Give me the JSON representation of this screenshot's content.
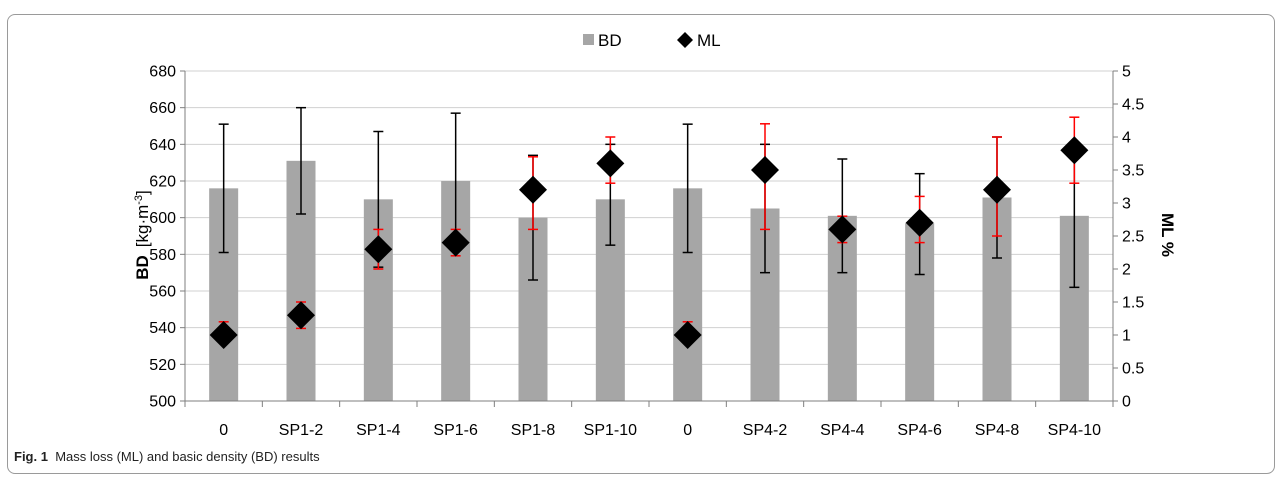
{
  "caption": {
    "label": "Fig. 1",
    "text": "Mass loss (ML) and basic density (BD) results"
  },
  "chart_data": {
    "type": "bar",
    "categories": [
      "0",
      "SP1-2",
      "SP1-4",
      "SP1-6",
      "SP1-8",
      "SP1-10",
      "0",
      "SP4-2",
      "SP4-4",
      "SP4-6",
      "SP4-8",
      "SP4-10"
    ],
    "legend": {
      "position": "top",
      "entries": [
        "BD",
        "ML"
      ]
    },
    "grid": true,
    "series": [
      {
        "name": "BD",
        "kind": "bar",
        "axis": "left",
        "color": "#a6a6a6",
        "values": [
          616,
          631,
          610,
          620,
          600,
          610,
          616,
          605,
          601,
          597,
          611,
          601
        ],
        "error_low": [
          581,
          602,
          573,
          583,
          566,
          585,
          581,
          570,
          570,
          569,
          578,
          562
        ],
        "error_high": [
          651,
          660,
          647,
          657,
          634,
          640,
          651,
          640,
          632,
          624,
          644,
          640
        ],
        "error_color": "#000000"
      },
      {
        "name": "ML",
        "kind": "scatter",
        "marker": "diamond",
        "axis": "right",
        "color": "#000000",
        "values": [
          1.0,
          1.3,
          2.3,
          2.4,
          3.2,
          3.6,
          1.0,
          3.5,
          2.6,
          2.7,
          3.2,
          3.8
        ],
        "error_low": [
          0.9,
          1.1,
          2.0,
          2.2,
          2.6,
          3.3,
          0.9,
          2.6,
          2.4,
          2.4,
          2.5,
          3.3
        ],
        "error_high": [
          1.2,
          1.5,
          2.6,
          2.6,
          3.7,
          4.0,
          1.2,
          4.2,
          2.8,
          3.1,
          4.0,
          4.3
        ],
        "error_color": "#ff0000"
      }
    ],
    "y_left": {
      "label_main": "BD",
      "label_unit": "[kg·m",
      "label_sup": "-3",
      "label_close": "]",
      "lim": [
        500,
        680
      ],
      "ticks": [
        500,
        520,
        540,
        560,
        580,
        600,
        620,
        640,
        660,
        680
      ],
      "tick_labels": [
        "500",
        "520",
        "540",
        "560",
        "580",
        "600",
        "620",
        "640",
        "660",
        "680"
      ]
    },
    "y_right": {
      "label": "ML %",
      "lim": [
        0,
        5
      ],
      "ticks": [
        0,
        0.5,
        1,
        1.5,
        2,
        2.5,
        3,
        3.5,
        4,
        4.5,
        5
      ],
      "tick_labels": [
        "0",
        "0.5",
        "1",
        "1.5",
        "2",
        "2.5",
        "3",
        "3.5",
        "4",
        "4.5",
        "5"
      ]
    }
  }
}
